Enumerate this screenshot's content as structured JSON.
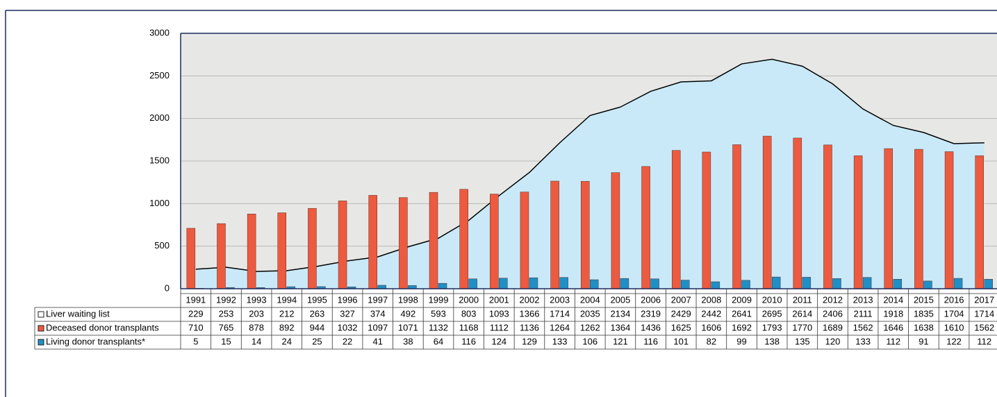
{
  "chart_data": {
    "type": "bar",
    "categories": [
      "1991",
      "1992",
      "1993",
      "1994",
      "1995",
      "1996",
      "1997",
      "1998",
      "1999",
      "2000",
      "2001",
      "2002",
      "2003",
      "2004",
      "2005",
      "2006",
      "2007",
      "2008",
      "2009",
      "2010",
      "2011",
      "2012",
      "2013",
      "2014",
      "2015",
      "2016",
      "2017"
    ],
    "series": [
      {
        "name": "Liver waiting list",
        "type": "area",
        "color": "#c9e9f8",
        "values": [
          229,
          253,
          203,
          212,
          263,
          327,
          374,
          492,
          593,
          803,
          1093,
          1366,
          1714,
          2035,
          2134,
          2319,
          2429,
          2442,
          2641,
          2695,
          2614,
          2406,
          2111,
          1918,
          1835,
          1704,
          1714
        ]
      },
      {
        "name": "Deceased donor transplants",
        "color": "#ec5a40",
        "values": [
          710,
          765,
          878,
          892,
          944,
          1032,
          1097,
          1071,
          1132,
          1168,
          1112,
          1136,
          1264,
          1262,
          1364,
          1436,
          1625,
          1606,
          1692,
          1793,
          1770,
          1689,
          1562,
          1646,
          1638,
          1610,
          1562
        ]
      },
      {
        "name": "Living donor transplants*",
        "color": "#1f8fc6",
        "values": [
          5,
          15,
          14,
          24,
          25,
          22,
          41,
          38,
          64,
          116,
          124,
          129,
          133,
          106,
          121,
          116,
          101,
          82,
          99,
          138,
          135,
          120,
          133,
          112,
          91,
          122,
          112
        ]
      }
    ],
    "ylim": [
      0,
      3000
    ],
    "yticks": [
      0,
      500,
      1000,
      1500,
      2000,
      2500,
      3000
    ],
    "grid": true
  }
}
